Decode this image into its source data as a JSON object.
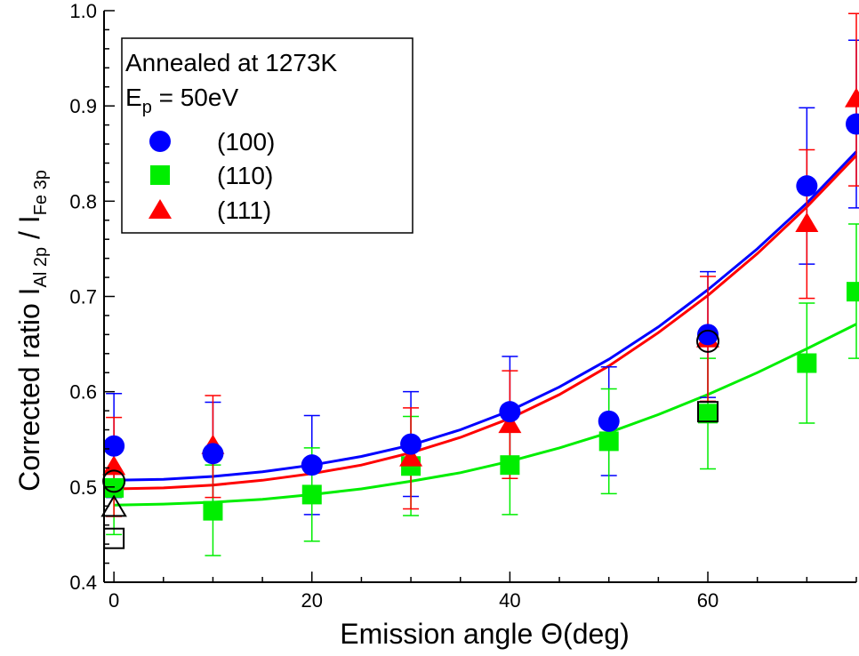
{
  "chart_data": {
    "type": "scatter",
    "xlabel": {
      "prefix": "Emission angle ",
      "symbol": "Θ",
      "suffix": "(deg)"
    },
    "ylabel": {
      "prefix": "Corrected ratio I",
      "sub1": "Al 2p",
      "mid": " / I",
      "sub2": "Fe 3p"
    },
    "xlim": [
      -1,
      75
    ],
    "ylim": [
      0.4,
      1.0
    ],
    "x_ticks": [
      0,
      20,
      40,
      60
    ],
    "x_tick_labels": [
      "0",
      "20",
      "40",
      "60"
    ],
    "x_minor_step": 5,
    "y_ticks": [
      0.4,
      0.5,
      0.6,
      0.7,
      0.8,
      0.9,
      1.0
    ],
    "y_tick_labels": [
      "0.4",
      "0.5",
      "0.6",
      "0.7",
      "0.8",
      "0.9",
      "1.0"
    ],
    "y_minor_step": 0.02,
    "grid": false,
    "legend": {
      "placement": "top-left",
      "line1": "Annealed at 1273K",
      "line2": {
        "prefix": "E",
        "sub": "p",
        "suffix": " = 50eV"
      }
    },
    "series": [
      {
        "name": "(100)",
        "marker": "circle",
        "color": "#0000ff",
        "x": [
          0,
          10,
          20,
          30,
          40,
          50,
          60,
          70,
          75
        ],
        "y": [
          0.543,
          0.535,
          0.523,
          0.545,
          0.579,
          0.569,
          0.66,
          0.816,
          0.881
        ],
        "yerr_low": [
          0.489,
          0.482,
          0.471,
          0.49,
          0.522,
          0.512,
          0.594,
          0.734,
          0.793
        ],
        "yerr_high": [
          0.598,
          0.589,
          0.575,
          0.6,
          0.637,
          0.626,
          0.726,
          0.898,
          0.969
        ],
        "fit": {
          "x": [
            0,
            5,
            10,
            15,
            20,
            25,
            30,
            35,
            40,
            45,
            50,
            55,
            60,
            65,
            70,
            75
          ],
          "y": [
            0.507,
            0.508,
            0.511,
            0.516,
            0.523,
            0.532,
            0.544,
            0.56,
            0.58,
            0.605,
            0.634,
            0.668,
            0.707,
            0.75,
            0.798,
            0.852
          ]
        }
      },
      {
        "name": "(110)",
        "marker": "square",
        "color": "#00ee00",
        "x": [
          0,
          10,
          20,
          30,
          40,
          50,
          60,
          70,
          75
        ],
        "y": [
          0.499,
          0.475,
          0.492,
          0.522,
          0.523,
          0.548,
          0.577,
          0.63,
          0.705
        ],
        "yerr_low": [
          0.45,
          0.428,
          0.443,
          0.47,
          0.471,
          0.493,
          0.519,
          0.567,
          0.635
        ],
        "yerr_high": [
          0.549,
          0.523,
          0.541,
          0.574,
          0.575,
          0.603,
          0.635,
          0.693,
          0.776
        ],
        "fit": {
          "x": [
            0,
            5,
            10,
            15,
            20,
            25,
            30,
            35,
            40,
            45,
            50,
            55,
            60,
            65,
            70,
            75
          ],
          "y": [
            0.481,
            0.482,
            0.484,
            0.487,
            0.492,
            0.498,
            0.506,
            0.515,
            0.527,
            0.541,
            0.557,
            0.576,
            0.597,
            0.62,
            0.645,
            0.671
          ]
        }
      },
      {
        "name": "(111)",
        "marker": "triangle",
        "color": "#ff0000",
        "x": [
          0,
          10,
          30,
          40,
          60,
          70,
          75
        ],
        "y": [
          0.521,
          0.543,
          0.53,
          0.565,
          0.655,
          0.776,
          0.907
        ],
        "yerr_low": [
          0.469,
          0.489,
          0.477,
          0.509,
          0.59,
          0.698,
          0.816
        ],
        "yerr_high": [
          0.573,
          0.596,
          0.583,
          0.622,
          0.721,
          0.854,
          0.997
        ],
        "fit": {
          "x": [
            0,
            5,
            10,
            15,
            20,
            25,
            30,
            35,
            40,
            45,
            50,
            55,
            60,
            65,
            70,
            75
          ],
          "y": [
            0.498,
            0.499,
            0.502,
            0.507,
            0.514,
            0.523,
            0.536,
            0.552,
            0.572,
            0.597,
            0.627,
            0.662,
            0.701,
            0.745,
            0.794,
            0.848
          ]
        }
      }
    ],
    "open_markers": [
      {
        "marker": "circle",
        "x": 0,
        "y": 0.506
      },
      {
        "marker": "triangle",
        "x": 0,
        "y": 0.478
      },
      {
        "marker": "square",
        "x": 0,
        "y": 0.446
      },
      {
        "marker": "circle",
        "x": 60,
        "y": 0.653
      },
      {
        "marker": "square",
        "x": 60,
        "y": 0.579
      }
    ]
  }
}
